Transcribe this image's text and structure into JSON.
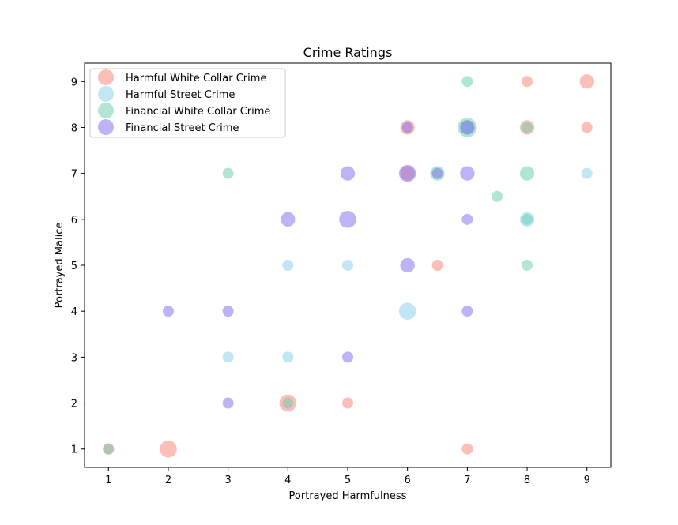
{
  "chart_data": {
    "type": "scatter",
    "title": "Crime Ratings",
    "xlabel": "Portrayed Harmfulness",
    "ylabel": "Portrayed Malice",
    "xlim": [
      0.6,
      9.4
    ],
    "ylim": [
      0.6,
      9.4
    ],
    "xticks": [
      1,
      2,
      3,
      4,
      5,
      6,
      7,
      8,
      9
    ],
    "yticks": [
      1,
      2,
      3,
      4,
      5,
      6,
      7,
      8,
      9
    ],
    "grid": false,
    "legend": "upper-left",
    "series": [
      {
        "name": "Harmful White Collar Crime",
        "color": "#fa8072",
        "points": [
          {
            "x": 9,
            "y": 9,
            "size": 2
          },
          {
            "x": 8,
            "y": 9,
            "size": 1
          },
          {
            "x": 6,
            "y": 8,
            "size": 2
          },
          {
            "x": 8,
            "y": 8,
            "size": 2
          },
          {
            "x": 9,
            "y": 8,
            "size": 1
          },
          {
            "x": 6,
            "y": 7,
            "size": 2
          },
          {
            "x": 6.5,
            "y": 5,
            "size": 1
          },
          {
            "x": 4,
            "y": 2,
            "size": 3
          },
          {
            "x": 5,
            "y": 2,
            "size": 1
          },
          {
            "x": 2,
            "y": 1,
            "size": 3
          },
          {
            "x": 7,
            "y": 1,
            "size": 1
          },
          {
            "x": 1,
            "y": 1,
            "size": 1
          }
        ]
      },
      {
        "name": "Harmful Street Crime",
        "color": "#87ceeb",
        "points": [
          {
            "x": 9,
            "y": 7,
            "size": 1
          },
          {
            "x": 8,
            "y": 6,
            "size": 2
          },
          {
            "x": 4,
            "y": 5,
            "size": 1
          },
          {
            "x": 5,
            "y": 5,
            "size": 1
          },
          {
            "x": 6,
            "y": 4,
            "size": 3
          },
          {
            "x": 3,
            "y": 3,
            "size": 1
          },
          {
            "x": 4,
            "y": 3,
            "size": 1
          },
          {
            "x": 7,
            "y": 8,
            "size": 2
          }
        ]
      },
      {
        "name": "Financial White Collar Crime",
        "color": "#66cdaa",
        "points": [
          {
            "x": 7,
            "y": 9,
            "size": 1
          },
          {
            "x": 7,
            "y": 8,
            "size": 4
          },
          {
            "x": 8,
            "y": 8,
            "size": 1
          },
          {
            "x": 3,
            "y": 7,
            "size": 1
          },
          {
            "x": 6.5,
            "y": 7,
            "size": 2
          },
          {
            "x": 8,
            "y": 7,
            "size": 2
          },
          {
            "x": 7.5,
            "y": 6.5,
            "size": 1
          },
          {
            "x": 8,
            "y": 5,
            "size": 1
          },
          {
            "x": 8,
            "y": 6,
            "size": 1
          },
          {
            "x": 4,
            "y": 2,
            "size": 1
          },
          {
            "x": 1,
            "y": 1,
            "size": 1
          }
        ]
      },
      {
        "name": "Financial Street Crime",
        "color": "#7b68ee",
        "points": [
          {
            "x": 6,
            "y": 8,
            "size": 1
          },
          {
            "x": 7,
            "y": 8,
            "size": 2
          },
          {
            "x": 5,
            "y": 7,
            "size": 2
          },
          {
            "x": 6,
            "y": 7,
            "size": 3
          },
          {
            "x": 6.5,
            "y": 7,
            "size": 1
          },
          {
            "x": 7,
            "y": 7,
            "size": 2
          },
          {
            "x": 4,
            "y": 6,
            "size": 2
          },
          {
            "x": 5,
            "y": 6,
            "size": 3
          },
          {
            "x": 7,
            "y": 6,
            "size": 1
          },
          {
            "x": 6,
            "y": 5,
            "size": 2
          },
          {
            "x": 2,
            "y": 4,
            "size": 1
          },
          {
            "x": 3,
            "y": 4,
            "size": 1
          },
          {
            "x": 7,
            "y": 4,
            "size": 1
          },
          {
            "x": 5,
            "y": 3,
            "size": 1
          },
          {
            "x": 3,
            "y": 2,
            "size": 1
          }
        ]
      }
    ]
  }
}
